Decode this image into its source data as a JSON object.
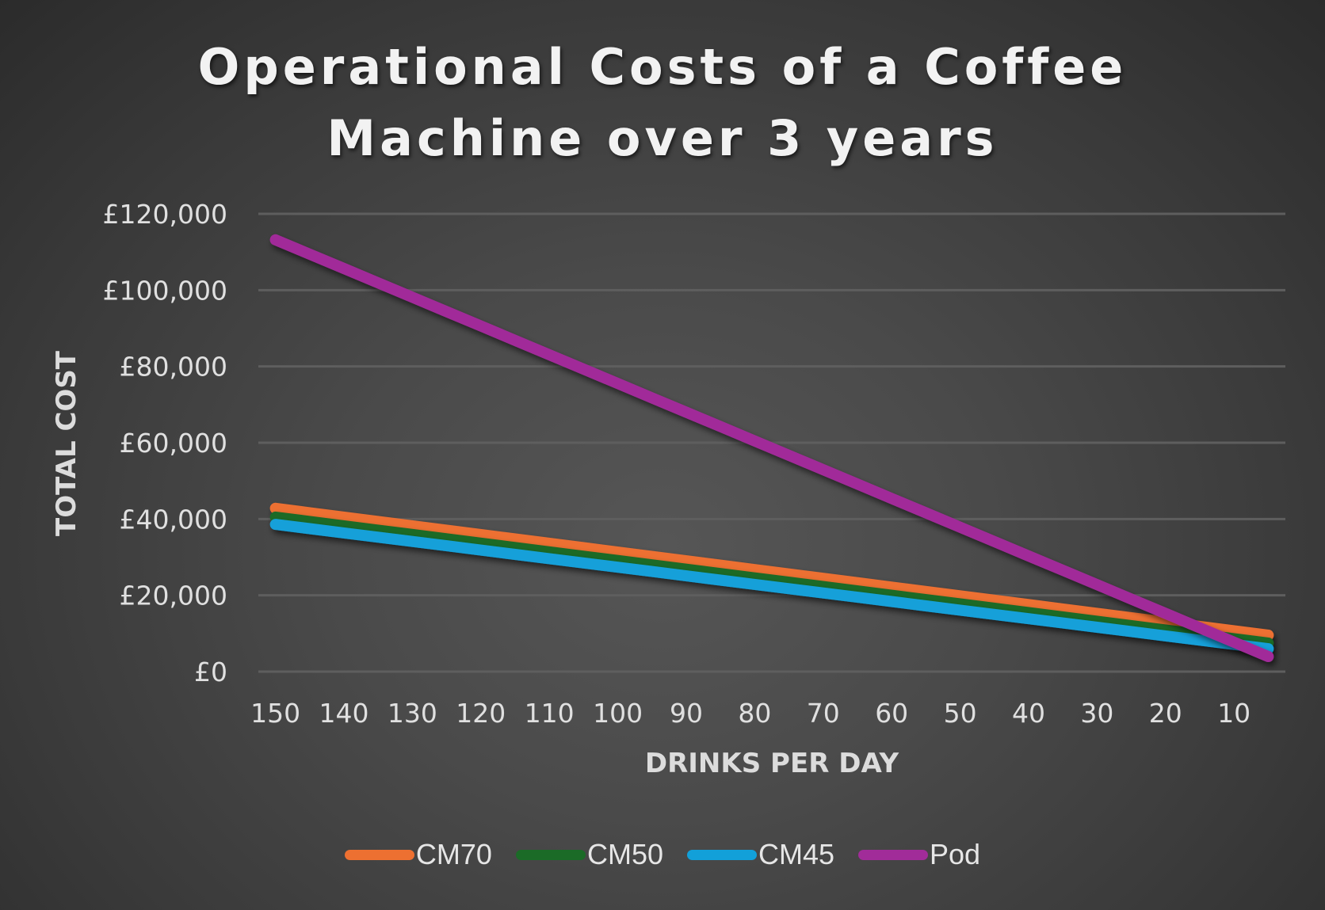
{
  "chart_data": {
    "type": "line",
    "title": "Operational Costs of a Coffee Machine over 3 years",
    "title_lines": [
      "Operational Costs of a Coffee",
      "Machine over 3 years"
    ],
    "xlabel": "DRINKS PER DAY",
    "ylabel": "TOTAL COST",
    "x": [
      150,
      145,
      140,
      135,
      130,
      125,
      120,
      115,
      110,
      105,
      100,
      95,
      90,
      85,
      80,
      75,
      70,
      65,
      60,
      55,
      50,
      45,
      40,
      35,
      30,
      25,
      20,
      15,
      10,
      5
    ],
    "x_tick_labels": [
      "150",
      "140",
      "130",
      "120",
      "110",
      "100",
      "90",
      "80",
      "70",
      "60",
      "50",
      "40",
      "30",
      "20",
      "10"
    ],
    "y_tick_labels": [
      "£0",
      "£20,000",
      "£40,000",
      "£60,000",
      "£80,000",
      "£100,000",
      "£120,000"
    ],
    "y_ticks": [
      0,
      20000,
      40000,
      60000,
      80000,
      100000,
      120000
    ],
    "ylim": [
      0,
      120000
    ],
    "grid": true,
    "legend_position": "bottom",
    "series": [
      {
        "name": "CM70",
        "color": "#ED7031",
        "start": 42800,
        "end": 9550
      },
      {
        "name": "CM50",
        "color": "#1B6B27",
        "start": 40500,
        "end": 7500
      },
      {
        "name": "CM45",
        "color": "#12A0D9",
        "start": 38600,
        "end": 6000
      },
      {
        "name": "Pod",
        "color": "#A12C99",
        "start": 113200,
        "end": 3950
      }
    ]
  }
}
